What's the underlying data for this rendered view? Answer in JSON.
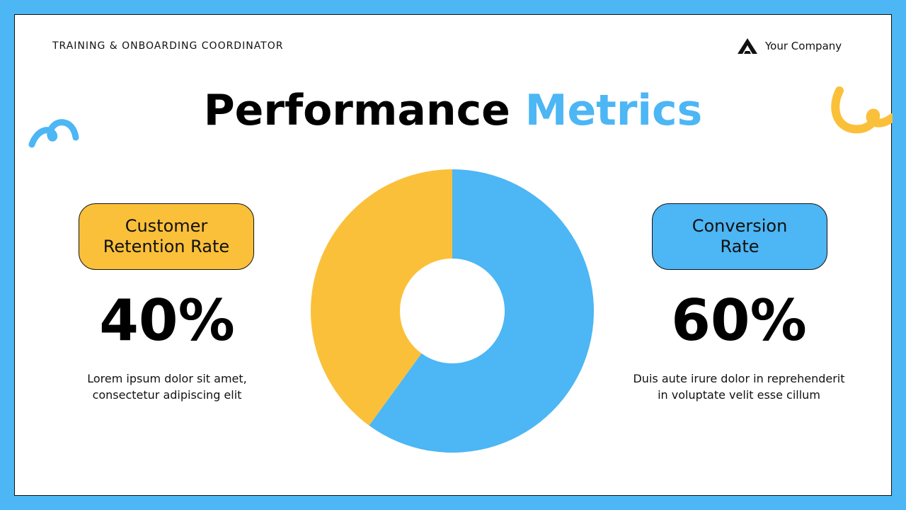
{
  "header": {
    "eyebrow": "TRAINING & ONBOARDING COORDINATOR",
    "company": "Your Company"
  },
  "title": {
    "main": "Performance",
    "accent": "Metrics"
  },
  "left": {
    "label": "Customer Retention Rate",
    "value": "40%",
    "description": "Lorem ipsum dolor sit amet, consectetur adipiscing elit"
  },
  "right": {
    "label": "Conversion Rate",
    "value": "60%",
    "description": "Duis aute irure dolor in reprehenderit in voluptate velit esse cillum"
  },
  "colors": {
    "blue": "#4db6f4",
    "yellow": "#fbc03a"
  },
  "chart_data": {
    "type": "pie",
    "variant": "donut",
    "categories": [
      "Conversion Rate",
      "Customer Retention Rate"
    ],
    "values": [
      60,
      40
    ],
    "colors": [
      "#4db6f4",
      "#fbc03a"
    ]
  }
}
